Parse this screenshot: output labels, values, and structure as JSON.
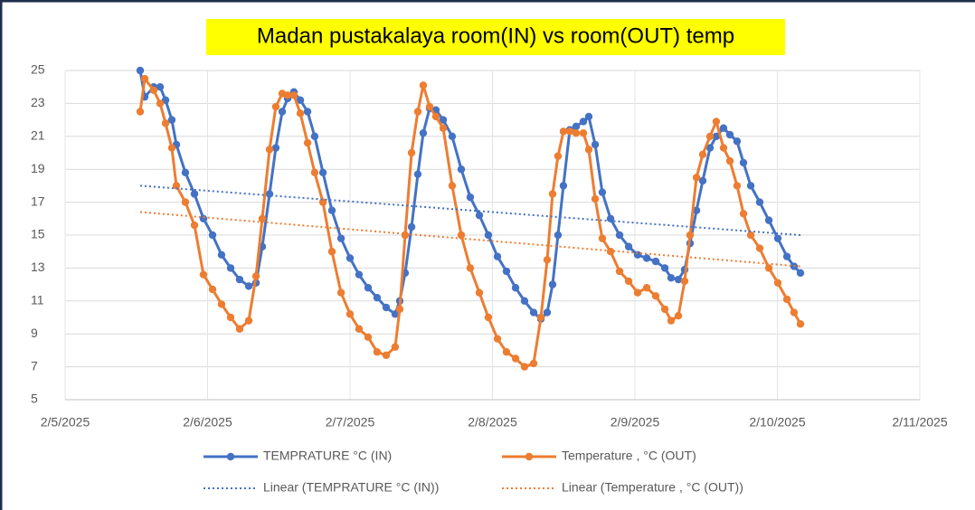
{
  "chart_data": {
    "type": "line",
    "title": "Madan pustakalaya room(IN) vs room(OUT) temp",
    "x": [
      0.527,
      0.559,
      0.622,
      0.667,
      0.705,
      0.749,
      0.781,
      0.844,
      0.908,
      0.971,
      1.035,
      1.098,
      1.162,
      1.225,
      1.289,
      1.34,
      1.384,
      1.435,
      1.479,
      1.524,
      1.562,
      1.606,
      1.651,
      1.702,
      1.752,
      1.81,
      1.873,
      1.937,
      2.0,
      2.063,
      2.127,
      2.19,
      2.254,
      2.317,
      2.349,
      2.387,
      2.432,
      2.476,
      2.514,
      2.559,
      2.603,
      2.654,
      2.717,
      2.781,
      2.844,
      2.908,
      2.971,
      3.035,
      3.098,
      3.162,
      3.225,
      3.289,
      3.34,
      3.384,
      3.422,
      3.46,
      3.498,
      3.543,
      3.587,
      3.638,
      3.676,
      3.721,
      3.771,
      3.829,
      3.892,
      3.956,
      4.019,
      4.083,
      4.146,
      4.21,
      4.254,
      4.305,
      4.349,
      4.387,
      4.432,
      4.476,
      4.527,
      4.571,
      4.622,
      4.667,
      4.717,
      4.762,
      4.813,
      4.876,
      4.94,
      5.003,
      5.067,
      5.117,
      5.162
    ],
    "series": [
      {
        "name": "TEMPRATURE °C (IN)",
        "color": "#4472c4",
        "style": "solid",
        "values": [
          25,
          23.4,
          24,
          24,
          23.2,
          22,
          20.5,
          18.8,
          17.5,
          16,
          15,
          13.8,
          13,
          12.3,
          11.9,
          12.1,
          14.3,
          17.5,
          20.3,
          22.5,
          23.3,
          23.7,
          23.2,
          22.5,
          21,
          18.8,
          16.5,
          14.8,
          13.6,
          12.6,
          11.8,
          11.2,
          10.6,
          10.2,
          11,
          12.7,
          15.5,
          18.7,
          21.2,
          22.7,
          22.6,
          22,
          21,
          19,
          17.3,
          16.2,
          15,
          13.7,
          12.8,
          11.8,
          11,
          10.3,
          9.9,
          10.3,
          12,
          15,
          18,
          21.4,
          21.6,
          21.9,
          22.2,
          20.5,
          17.6,
          16,
          15,
          14.3,
          13.8,
          13.6,
          13.4,
          13,
          12.4,
          12.3,
          12.9,
          14.5,
          16.5,
          18.3,
          20.3,
          21,
          21.5,
          21.1,
          20.7,
          19.4,
          18,
          17,
          15.9,
          14.8,
          13.7,
          13.1,
          12.7
        ]
      },
      {
        "name": "Temperature , °C (OUT)",
        "color": "#ed7d31",
        "style": "solid",
        "values": [
          22.5,
          24.5,
          23.8,
          23,
          21.8,
          20.3,
          18,
          17,
          15.6,
          12.6,
          11.7,
          10.8,
          10,
          9.3,
          9.8,
          12.5,
          16,
          20.2,
          22.8,
          23.6,
          23.5,
          23.5,
          22.4,
          20.6,
          18.8,
          17,
          14,
          11.5,
          10.2,
          9.3,
          8.8,
          7.9,
          7.7,
          8.2,
          10.5,
          15,
          20,
          22.5,
          24.1,
          22.8,
          22.2,
          21.5,
          18,
          15,
          13,
          11.5,
          10,
          8.7,
          7.9,
          7.5,
          7.0,
          7.2,
          10,
          13.5,
          17.5,
          19.8,
          21.3,
          21.3,
          21.2,
          21.2,
          20.2,
          17.2,
          14.8,
          14,
          12.8,
          12.2,
          11.5,
          11.8,
          11.3,
          10.5,
          9.8,
          10.1,
          12.2,
          15,
          18.5,
          19.9,
          21,
          21.9,
          20.3,
          19.5,
          18,
          16.3,
          15,
          14.2,
          13,
          12.1,
          11.1,
          10.3,
          9.6
        ]
      },
      {
        "name": "Linear (TEMPRATURE °C (IN))",
        "color": "#4472c4",
        "style": "dotted",
        "x": [
          0.527,
          5.162
        ],
        "values": [
          18,
          15
        ]
      },
      {
        "name": "Linear (Temperature , °C (OUT))",
        "color": "#ed7d31",
        "style": "dotted",
        "x": [
          0.527,
          5.162
        ],
        "values": [
          16.4,
          13.1
        ]
      }
    ],
    "xlim": [
      0,
      6
    ],
    "xticks": [
      {
        "value": 0,
        "label": "2/5/2025"
      },
      {
        "value": 1,
        "label": "2/6/2025"
      },
      {
        "value": 2,
        "label": "2/7/2025"
      },
      {
        "value": 3,
        "label": "2/8/2025"
      },
      {
        "value": 4,
        "label": "2/9/2025"
      },
      {
        "value": 5,
        "label": "2/10/2025"
      },
      {
        "value": 6,
        "label": "2/11/2025"
      }
    ],
    "ylim": [
      5,
      25
    ],
    "yticks": [
      5,
      7,
      9,
      11,
      13,
      15,
      17,
      19,
      21,
      23,
      25
    ],
    "grid": true,
    "legend": "bottom"
  }
}
